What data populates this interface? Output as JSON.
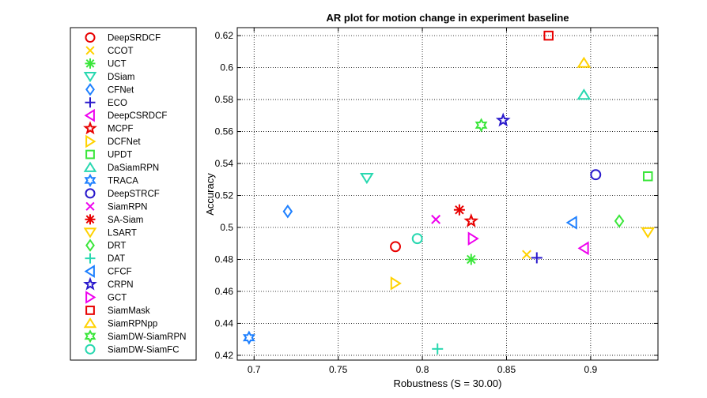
{
  "chart_data": {
    "type": "scatter",
    "title": "AR plot for motion change in experiment baseline",
    "xlabel": "Robustness (S = 30.00)",
    "ylabel": "Accuracy",
    "xlim": [
      0.69,
      0.94
    ],
    "ylim": [
      0.417,
      0.625
    ],
    "xticks": [
      0.7,
      0.75,
      0.8,
      0.85,
      0.9
    ],
    "xtick_labels": [
      "0.7",
      "0.75",
      "0.8",
      "0.85",
      "0.9"
    ],
    "yticks": [
      0.42,
      0.44,
      0.46,
      0.48,
      0.5,
      0.52,
      0.54,
      0.56,
      0.58,
      0.6,
      0.62
    ],
    "ytick_labels": [
      "0.42",
      "0.44",
      "0.46",
      "0.48",
      "0.5",
      "0.52",
      "0.54",
      "0.56",
      "0.58",
      "0.6",
      "0.62"
    ],
    "grid": true,
    "legend_position": "left-outside",
    "series": [
      {
        "name": "DeepSRDCF",
        "marker": "circle",
        "color": "#e80000",
        "x": 0.784,
        "y": 0.488
      },
      {
        "name": "CCOT",
        "marker": "x",
        "color": "#ffd200",
        "x": 0.862,
        "y": 0.483
      },
      {
        "name": "UCT",
        "marker": "asterisk",
        "color": "#3ae63a",
        "x": 0.829,
        "y": 0.48
      },
      {
        "name": "DSiam",
        "marker": "triangle-down",
        "color": "#28d8b0",
        "x": 0.767,
        "y": 0.531
      },
      {
        "name": "CFNet",
        "marker": "diamond",
        "color": "#1e80ff",
        "x": 0.72,
        "y": 0.51
      },
      {
        "name": "ECO",
        "marker": "plus",
        "color": "#2a1acc",
        "x": 0.868,
        "y": 0.481
      },
      {
        "name": "DeepCSRDCF",
        "marker": "triangle-left",
        "color": "#ee00ee",
        "x": 0.896,
        "y": 0.487
      },
      {
        "name": "MCPF",
        "marker": "star",
        "color": "#e80000",
        "x": 0.829,
        "y": 0.504
      },
      {
        "name": "DCFNet",
        "marker": "triangle-right",
        "color": "#ffd200",
        "x": 0.784,
        "y": 0.465
      },
      {
        "name": "UPDT",
        "marker": "square",
        "color": "#3ae63a",
        "x": 0.934,
        "y": 0.532
      },
      {
        "name": "DaSiamRPN",
        "marker": "triangle-up",
        "color": "#28d8b0",
        "x": 0.896,
        "y": 0.583
      },
      {
        "name": "TRACA",
        "marker": "hexagram",
        "color": "#1e80ff",
        "x": 0.697,
        "y": 0.431
      },
      {
        "name": "DeepSTRCF",
        "marker": "circle",
        "color": "#2a1acc",
        "x": 0.903,
        "y": 0.533
      },
      {
        "name": "SiamRPN",
        "marker": "x",
        "color": "#ee00ee",
        "x": 0.808,
        "y": 0.505
      },
      {
        "name": "SA-Siam",
        "marker": "asterisk",
        "color": "#e80000",
        "x": 0.822,
        "y": 0.511
      },
      {
        "name": "LSART",
        "marker": "triangle-down",
        "color": "#ffd200",
        "x": 0.934,
        "y": 0.497
      },
      {
        "name": "DRT",
        "marker": "diamond",
        "color": "#3ae63a",
        "x": 0.917,
        "y": 0.504
      },
      {
        "name": "DAT",
        "marker": "plus",
        "color": "#28d8b0",
        "x": 0.809,
        "y": 0.424
      },
      {
        "name": "CFCF",
        "marker": "triangle-left",
        "color": "#1e80ff",
        "x": 0.889,
        "y": 0.503
      },
      {
        "name": "CRPN",
        "marker": "star",
        "color": "#2a1acc",
        "x": 0.848,
        "y": 0.567
      },
      {
        "name": "GCT",
        "marker": "triangle-right",
        "color": "#ee00ee",
        "x": 0.83,
        "y": 0.493
      },
      {
        "name": "SiamMask",
        "marker": "square",
        "color": "#e80000",
        "x": 0.875,
        "y": 0.62
      },
      {
        "name": "SiamRPNpp",
        "marker": "triangle-up",
        "color": "#ffd200",
        "x": 0.896,
        "y": 0.603
      },
      {
        "name": "SiamDW-SiamRPN",
        "marker": "hexagram",
        "color": "#3ae63a",
        "x": 0.835,
        "y": 0.564
      },
      {
        "name": "SiamDW-SiamFC",
        "marker": "circle",
        "color": "#28d8b0",
        "x": 0.797,
        "y": 0.493
      }
    ]
  }
}
